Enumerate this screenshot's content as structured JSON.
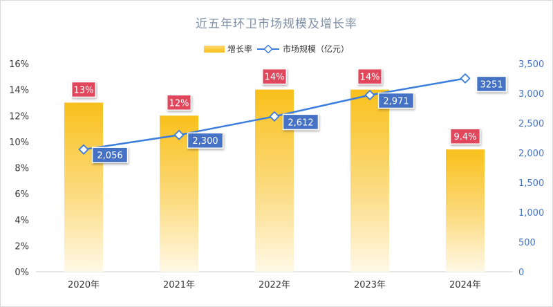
{
  "chart_data": {
    "type": "bar+line",
    "title": "近五年环卫市场规模及增长率",
    "categories": [
      "2020年",
      "2021年",
      "2022年",
      "2023年",
      "2024年"
    ],
    "series": [
      {
        "name": "增长率",
        "type": "bar",
        "axis": "left",
        "values": [
          13,
          12,
          14,
          14,
          9.4
        ],
        "labels": [
          "13%",
          "12%",
          "14%",
          "14%",
          "9.4%"
        ],
        "color": "#f9c01b"
      },
      {
        "name": "市场规模（亿元）",
        "type": "line",
        "axis": "right",
        "values": [
          2056,
          2300,
          2612,
          2971,
          3251
        ],
        "labels": [
          "2,056",
          "2,300",
          "2,612",
          "2,971",
          "3251"
        ],
        "color": "#3b7ddd"
      }
    ],
    "y_left": {
      "range": [
        0,
        16
      ],
      "ticks": [
        "0%",
        "2%",
        "4%",
        "6%",
        "8%",
        "10%",
        "12%",
        "14%",
        "16%"
      ]
    },
    "y_right": {
      "range": [
        0,
        3500
      ],
      "ticks": [
        "0",
        "500",
        "1,000",
        "1,500",
        "2,000",
        "2,500",
        "3,000",
        "3,500"
      ]
    },
    "legend": [
      "增长率",
      "市场规模（亿元）"
    ],
    "legend_position": "top"
  },
  "colors": {
    "bar_label_bg": "#e0475b",
    "line_label_bg": "#4472c4",
    "right_axis": "#4472c4",
    "title": "#7f8fa6"
  }
}
